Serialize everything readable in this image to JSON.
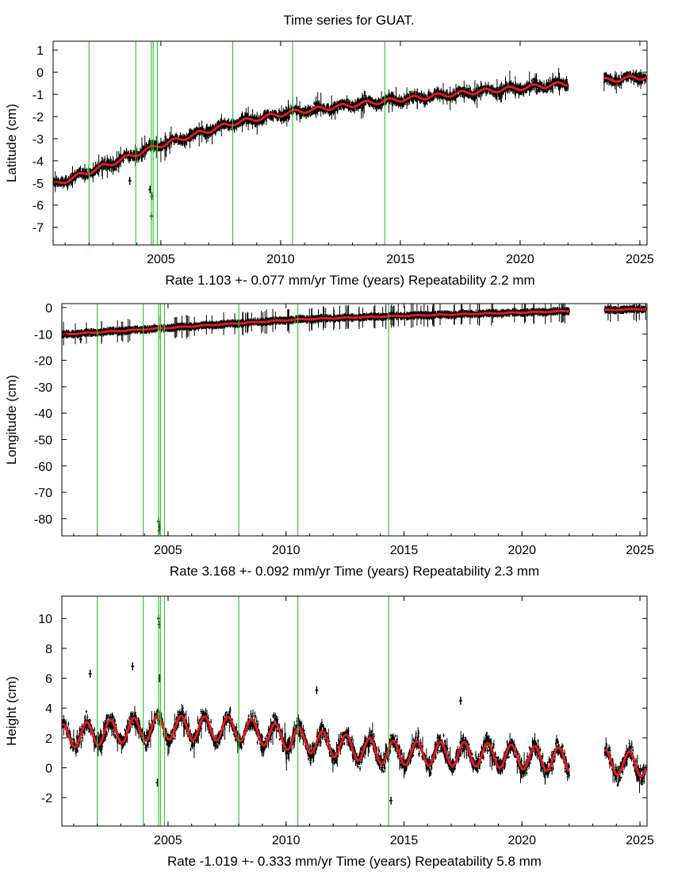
{
  "title": "Time series for GUAT.",
  "colors": {
    "data": "#000000",
    "model": "#e41a1c",
    "breaks": "#33cc33",
    "frame": "#000000"
  },
  "chart_data": [
    {
      "type": "scatter",
      "panel": "latitude",
      "ylabel": "Latitude (cm)",
      "xlabel": "Time (years)",
      "rate_text": "Rate 1.103 +- 0.077 mm/yr",
      "repeat_text": "Repeatability 2.2 mm",
      "xlim": [
        2000.5,
        2025.3
      ],
      "ylim": [
        -7.8,
        1.4
      ],
      "xticks": [
        2005,
        2010,
        2015,
        2020,
        2025
      ],
      "yticks": [
        1,
        0,
        -1,
        -2,
        -3,
        -4,
        -5,
        -6,
        -7
      ],
      "noise": 0.3,
      "amp": 0.1,
      "breaks": [
        2002.0,
        2003.95,
        2004.6,
        2004.68,
        2004.85,
        2008.0,
        2010.5,
        2014.35
      ],
      "gaps": [
        [
          2022.0,
          2023.5
        ]
      ],
      "trend": [
        [
          2000.5,
          -5.1
        ],
        [
          2002.0,
          -4.5
        ],
        [
          2003.95,
          -3.7
        ],
        [
          2004.8,
          -3.35
        ],
        [
          2008.0,
          -2.3
        ],
        [
          2010.5,
          -1.8
        ],
        [
          2014.35,
          -1.3
        ],
        [
          2018.0,
          -0.9
        ],
        [
          2025.3,
          -0.2
        ]
      ],
      "offsets": [
        [
          2002.0,
          0.3
        ],
        [
          2008.0,
          0.3
        ]
      ],
      "outliers": [
        [
          2004.6,
          -6.5
        ],
        [
          2004.62,
          -5.6
        ],
        [
          2003.7,
          -4.9
        ],
        [
          2004.55,
          -5.3
        ]
      ]
    },
    {
      "type": "scatter",
      "panel": "longitude",
      "ylabel": "Longitude (cm)",
      "xlabel": "Time (years)",
      "rate_text": "Rate 3.168 +- 0.092 mm/yr",
      "repeat_text": "Repeatability 2.3 mm",
      "xlim": [
        2000.5,
        2025.3
      ],
      "ylim": [
        -86.5,
        1.5
      ],
      "xticks": [
        2005,
        2010,
        2015,
        2020,
        2025
      ],
      "yticks": [
        0,
        -10,
        -20,
        -30,
        -40,
        -50,
        -60,
        -70,
        -80
      ],
      "noise": 0.35,
      "amp": 0.15,
      "breaks": [
        2002.0,
        2003.95,
        2004.6,
        2004.68,
        2004.85,
        2008.0,
        2010.5,
        2014.35
      ],
      "gaps": [
        [
          2022.0,
          2023.5
        ]
      ],
      "trend": [
        [
          2000.5,
          -10.2
        ],
        [
          2004.8,
          -7.8
        ],
        [
          2010.5,
          -4.5
        ],
        [
          2014.35,
          -3.3
        ],
        [
          2025.3,
          -0.5
        ]
      ],
      "offsets": [],
      "outliers": [
        [
          2004.6,
          -81.0
        ],
        [
          2004.63,
          -83.0
        ],
        [
          2004.62,
          -84.5
        ],
        [
          2001.3,
          -12.0
        ]
      ]
    },
    {
      "type": "scatter",
      "panel": "height",
      "ylabel": "Height (cm)",
      "xlabel": "Time (years)",
      "rate_text": "Rate -1.019 +- 0.333 mm/yr",
      "repeat_text": "Repeatability 5.8 mm",
      "xlim": [
        2000.5,
        2025.3
      ],
      "ylim": [
        -3.9,
        11.5
      ],
      "xticks": [
        2005,
        2010,
        2015,
        2020,
        2025
      ],
      "yticks": [
        10,
        8,
        6,
        4,
        2,
        0,
        -2
      ],
      "noise": 0.9,
      "amp": 0.8,
      "breaks": [
        2002.0,
        2003.95,
        2004.6,
        2004.68,
        2004.85,
        2008.0,
        2010.5,
        2014.35
      ],
      "gaps": [
        [
          2022.0,
          2023.5
        ]
      ],
      "trend": [
        [
          2000.5,
          2.1
        ],
        [
          2004.6,
          2.7
        ],
        [
          2008.0,
          2.6
        ],
        [
          2010.5,
          1.9
        ],
        [
          2014.35,
          1.0
        ],
        [
          2018.0,
          0.9
        ],
        [
          2025.3,
          0.2
        ]
      ],
      "offsets": [],
      "outliers": [
        [
          2004.6,
          10.0
        ],
        [
          2004.62,
          9.6
        ],
        [
          2004.64,
          6.0
        ],
        [
          2001.7,
          6.3
        ],
        [
          2003.5,
          6.8
        ],
        [
          2011.3,
          5.2
        ],
        [
          2017.4,
          4.5
        ],
        [
          2014.45,
          -2.2
        ],
        [
          2004.55,
          -1.0
        ]
      ]
    }
  ]
}
